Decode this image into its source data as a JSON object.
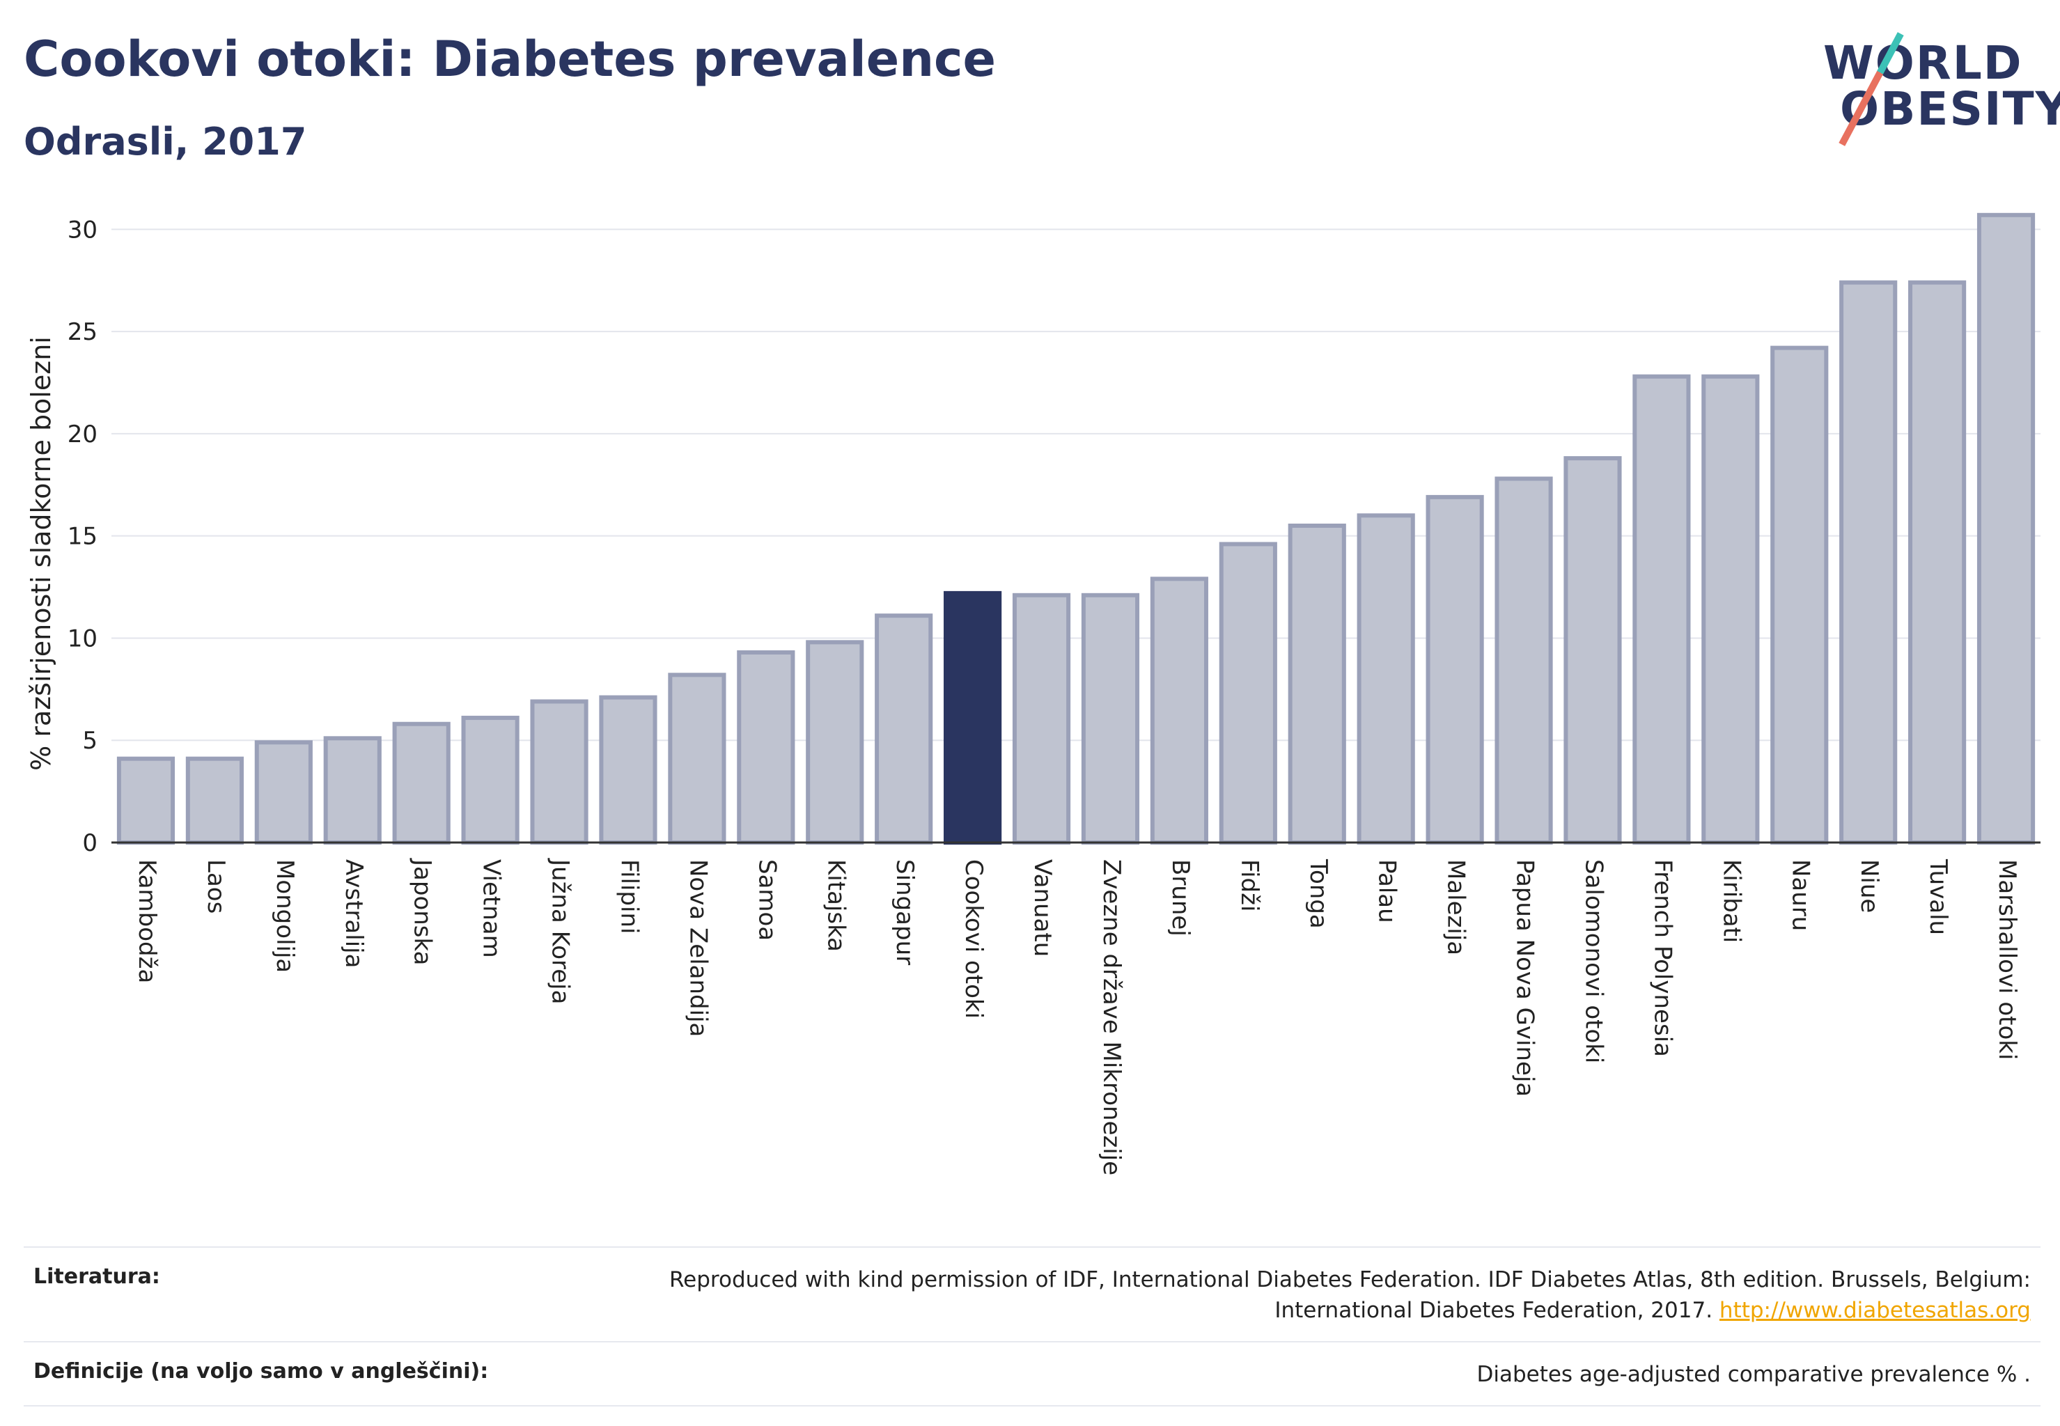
{
  "header": {
    "title": "Cookovi otoki: Diabetes prevalence",
    "subtitle": "Odrasli, 2017"
  },
  "logo": {
    "line1": "WORLD",
    "line2": "OBESITY"
  },
  "chart_data": {
    "type": "bar",
    "title": "",
    "xlabel": "",
    "ylabel": "% razširjenosti sladkorne bolezni",
    "ylim": [
      0,
      31
    ],
    "yticks": [
      0,
      5,
      10,
      15,
      20,
      25,
      30
    ],
    "grid": true,
    "highlight_category": "Cookovi otoki",
    "colors": {
      "bar": "#bfc3d0",
      "bar_edge": "#9aa0b8",
      "highlight": "#2a3560",
      "grid": "#e3e5ec",
      "axis": "#333333"
    },
    "categories": [
      "Kambodža",
      "Laos",
      "Mongolija",
      "Avstralija",
      "Japonska",
      "Vietnam",
      "Južna Koreja",
      "Filipini",
      "Nova Zelandija",
      "Samoa",
      "Kitajska",
      "Singapur",
      "Cookovi otoki",
      "Vanuatu",
      "Zvezne države Mikronezije",
      "Brunej",
      "Fidži",
      "Tonga",
      "Palau",
      "Malezija",
      "Papua Nova Gvineja",
      "Salomonovi otoki",
      "French Polynesia",
      "Kiribati",
      "Nauru",
      "Niue",
      "Tuvalu",
      "Marshallovi otoki"
    ],
    "values": [
      4.1,
      4.1,
      4.9,
      5.1,
      5.8,
      6.1,
      6.9,
      7.1,
      8.2,
      9.3,
      9.8,
      11.1,
      12.2,
      12.1,
      12.1,
      12.9,
      14.6,
      15.5,
      16.0,
      16.9,
      17.8,
      18.8,
      22.8,
      22.8,
      24.2,
      27.4,
      27.4,
      30.7
    ]
  },
  "references": {
    "literature_label": "Literatura:",
    "literature_text": "Reproduced with kind permission of IDF, International Diabetes Federation. IDF Diabetes Atlas, 8th edition. Brussels, Belgium: International Diabetes Federation, 2017.",
    "literature_link": "http://www.diabetesatlas.org",
    "definitions_label": "Definicije (na voljo samo v angleščini):",
    "definitions_text": "Diabetes age-adjusted comparative prevalence  % ."
  }
}
